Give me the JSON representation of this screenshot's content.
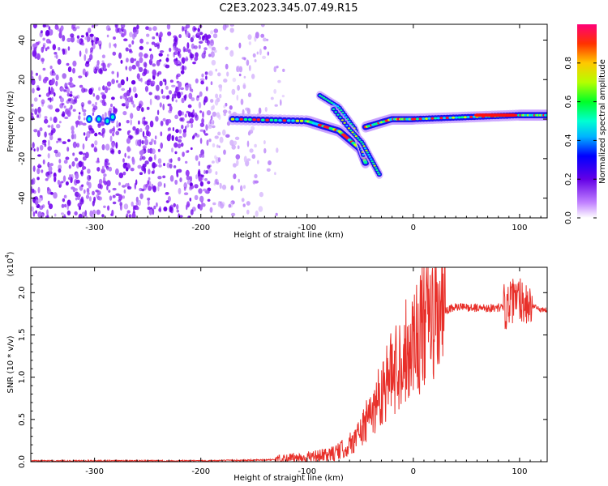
{
  "title": "C2E3.2023.345.07.49.R15",
  "chart_data": [
    {
      "type": "heatmap",
      "name": "spectrogram",
      "xlabel": "Height of straight line (km)",
      "ylabel": "Frequency (Hz)",
      "xlim": [
        -360,
        126
      ],
      "ylim": [
        -50,
        48
      ],
      "xticks": [
        -300,
        -200,
        -100,
        0,
        100
      ],
      "yticks": [
        -40,
        -20,
        0,
        20,
        40
      ],
      "colorbar": {
        "label": "Normalized spectral amplitude",
        "range": [
          0,
          1
        ],
        "ticks": [
          "0.0",
          "0.2",
          "0.4",
          "0.6",
          "0.8"
        ],
        "tick_values": [
          0.0,
          0.2,
          0.4,
          0.6,
          0.8
        ]
      },
      "features": [
        {
          "name": "noise",
          "x_range": [
            -360,
            -120
          ],
          "y_range": [
            -50,
            48
          ]
        },
        {
          "name": "main-trace",
          "points": [
            [
              -170,
              0
            ],
            [
              -100,
              -1
            ],
            [
              -70,
              -6
            ],
            [
              -50,
              -15
            ],
            [
              -45,
              -22
            ]
          ]
        },
        {
          "name": "branch-trace-1",
          "points": [
            [
              -88,
              12
            ],
            [
              -70,
              6
            ],
            [
              -55,
              -5
            ],
            [
              -47,
              -18
            ]
          ]
        },
        {
          "name": "branch-trace-2",
          "points": [
            [
              -75,
              5
            ],
            [
              -60,
              -5
            ],
            [
              -48,
              -12
            ],
            [
              -40,
              -20
            ],
            [
              -32,
              -28
            ]
          ]
        },
        {
          "name": "post-trace",
          "points": [
            [
              -45,
              -4
            ],
            [
              -20,
              0
            ],
            [
              0,
              0
            ],
            [
              50,
              1
            ],
            [
              100,
              2
            ],
            [
              126,
              2
            ]
          ]
        }
      ]
    },
    {
      "type": "line",
      "name": "snr",
      "xlabel": "Height of straight line (km)",
      "ylabel": "SNR (10 * v/v)",
      "scale_label": "(x10",
      "scale_exp": "4",
      "scale_close": ")",
      "xlim": [
        -360,
        126
      ],
      "ylim": [
        0,
        2.3
      ],
      "xticks": [
        -300,
        -200,
        -100,
        0,
        100
      ],
      "yticks": [
        "0.0",
        "0.5",
        "1.0",
        "1.5",
        "2.0"
      ],
      "ytick_values": [
        0.0,
        0.5,
        1.0,
        1.5,
        2.0
      ],
      "series": [
        {
          "name": "SNR",
          "color": "#e8302a",
          "x": [
            -360,
            -300,
            -200,
            -140,
            -120,
            -100,
            -90,
            -80,
            -70,
            -60,
            -50,
            -40,
            -30,
            -20,
            -10,
            0,
            10,
            20,
            30,
            40,
            60,
            80,
            90,
            100,
            110,
            120,
            126
          ],
          "y": [
            0.01,
            0.01,
            0.01,
            0.02,
            0.03,
            0.05,
            0.06,
            0.08,
            0.12,
            0.2,
            0.35,
            0.55,
            0.85,
            1.05,
            1.25,
            1.45,
            1.6,
            1.7,
            1.78,
            1.83,
            1.82,
            1.82,
            1.85,
            1.95,
            1.85,
            1.8,
            1.8
          ]
        }
      ]
    }
  ]
}
